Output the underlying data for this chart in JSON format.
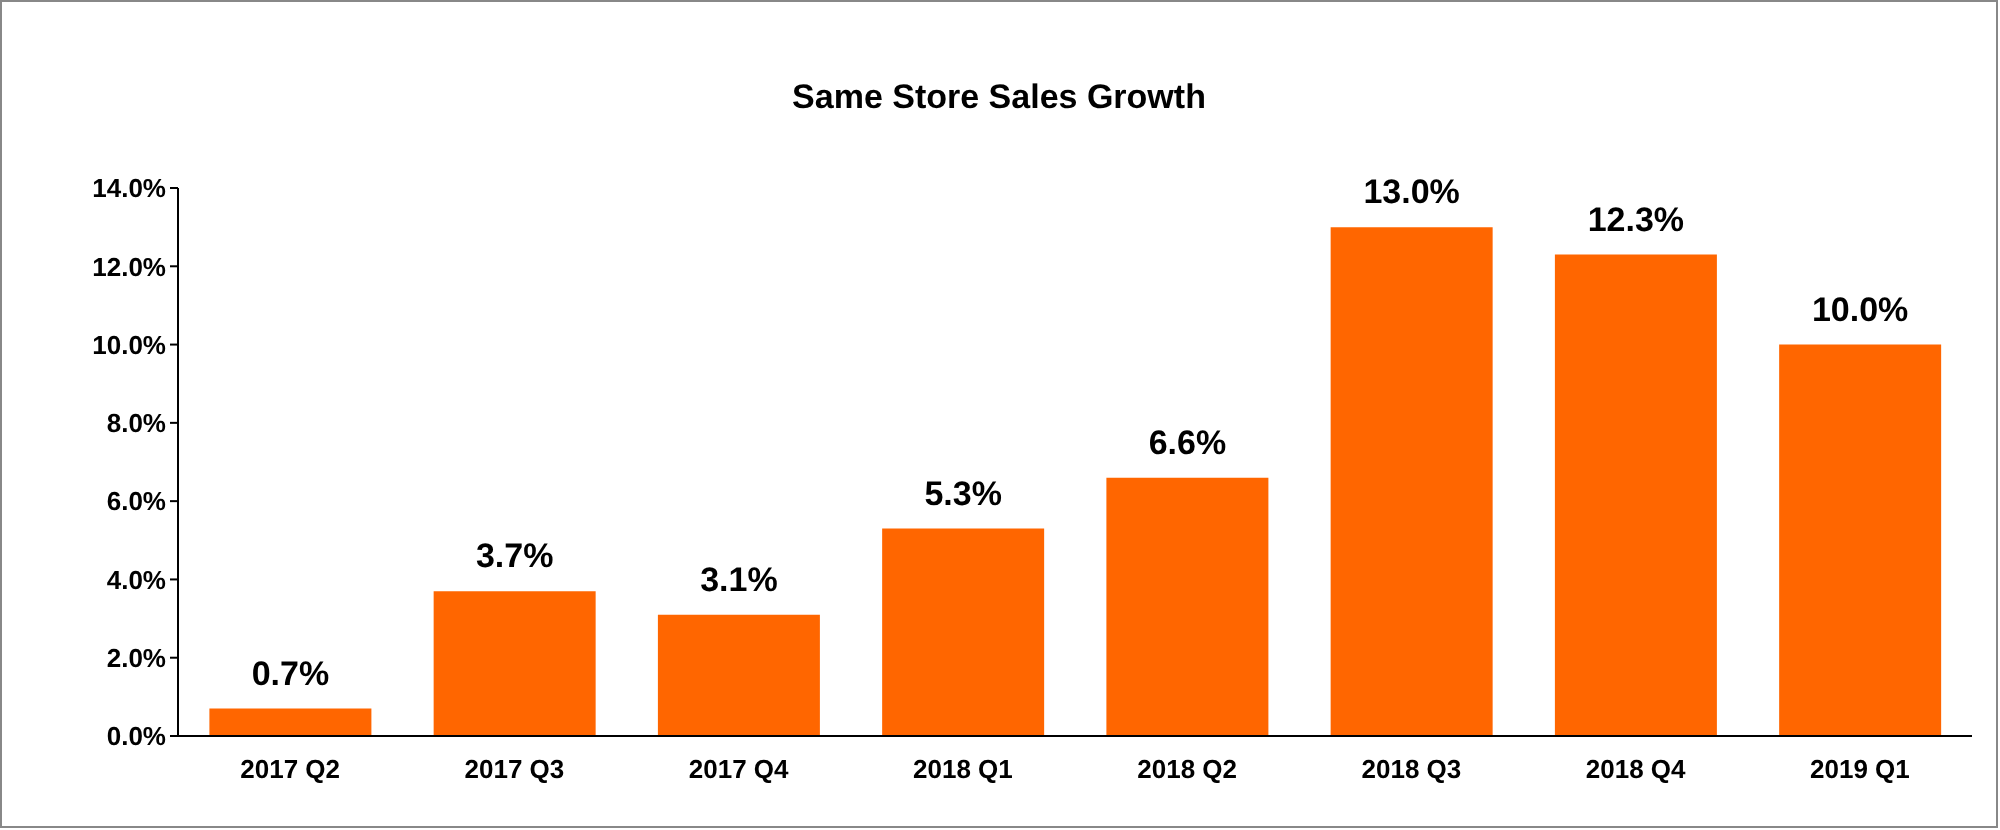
{
  "chart_data": {
    "type": "bar",
    "title": "Same Store Sales Growth",
    "categories": [
      "2017 Q2",
      "2017 Q3",
      "2017 Q4",
      "2018 Q1",
      "2018 Q2",
      "2018 Q3",
      "2018 Q4",
      "2019 Q1"
    ],
    "values": [
      0.7,
      3.7,
      3.1,
      5.3,
      6.6,
      13.0,
      12.3,
      10.0
    ],
    "value_labels": [
      "0.7%",
      "3.7%",
      "3.1%",
      "5.3%",
      "6.6%",
      "13.0%",
      "12.3%",
      "10.0%"
    ],
    "color": "#ff6600",
    "ylim": [
      0,
      14
    ],
    "yticks": [
      {
        "value": 0,
        "label": "0.0%"
      },
      {
        "value": 2,
        "label": "2.0%"
      },
      {
        "value": 4,
        "label": "4.0%"
      },
      {
        "value": 6,
        "label": "6.0%"
      },
      {
        "value": 8,
        "label": "8.0%"
      },
      {
        "value": 10,
        "label": "10.0%"
      },
      {
        "value": 12,
        "label": "12.0%"
      },
      {
        "value": 14,
        "label": "14.0%"
      }
    ],
    "grid": false,
    "legend": false
  }
}
